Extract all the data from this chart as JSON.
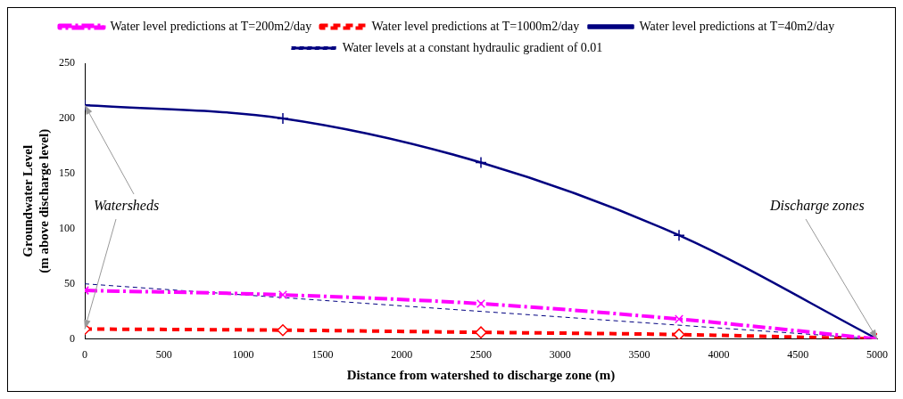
{
  "chart_data": {
    "type": "line",
    "xlabel": "Distance from watershed to discharge zone (m)",
    "ylabel": "Groundwater Level\n(m above discharge level)",
    "x": [
      0,
      1250,
      2500,
      3750,
      5000
    ],
    "series": [
      {
        "name": "Water level predictions at T=200m2/day",
        "color": "#ff00ff",
        "values": [
          44,
          40,
          32,
          18,
          0
        ],
        "marker": "cross",
        "line_style": "dashed"
      },
      {
        "name": "Water level predictions at T=1000m2/day",
        "color": "#ff0000",
        "values": [
          9,
          8,
          6,
          4,
          0
        ],
        "marker": "diamond",
        "line_style": "dashed"
      },
      {
        "name": "Water level predictions at T=40m2/day",
        "color": "#000080",
        "values": [
          212,
          200,
          160,
          94,
          0
        ],
        "marker": "cross",
        "line_style": "solid"
      },
      {
        "name": "Water levels at a constant hydraulic gradient of 0.01",
        "color": "#000080",
        "x": [
          0,
          5000
        ],
        "values": [
          50,
          0
        ],
        "marker": "none",
        "line_style": "dashed"
      }
    ],
    "xlim": [
      0,
      5000
    ],
    "xticks": [
      0,
      500,
      1000,
      1500,
      2000,
      2500,
      3000,
      3500,
      4000,
      4500,
      5000
    ],
    "ylim": [
      0,
      250
    ],
    "yticks": [
      0,
      50,
      100,
      150,
      200,
      250
    ],
    "grid": false,
    "legend": "top",
    "annotations": [
      {
        "text": "Watersheds",
        "x": 0,
        "y": 212
      },
      {
        "text": "Discharge zones",
        "x": 5000,
        "y": 0
      }
    ]
  }
}
